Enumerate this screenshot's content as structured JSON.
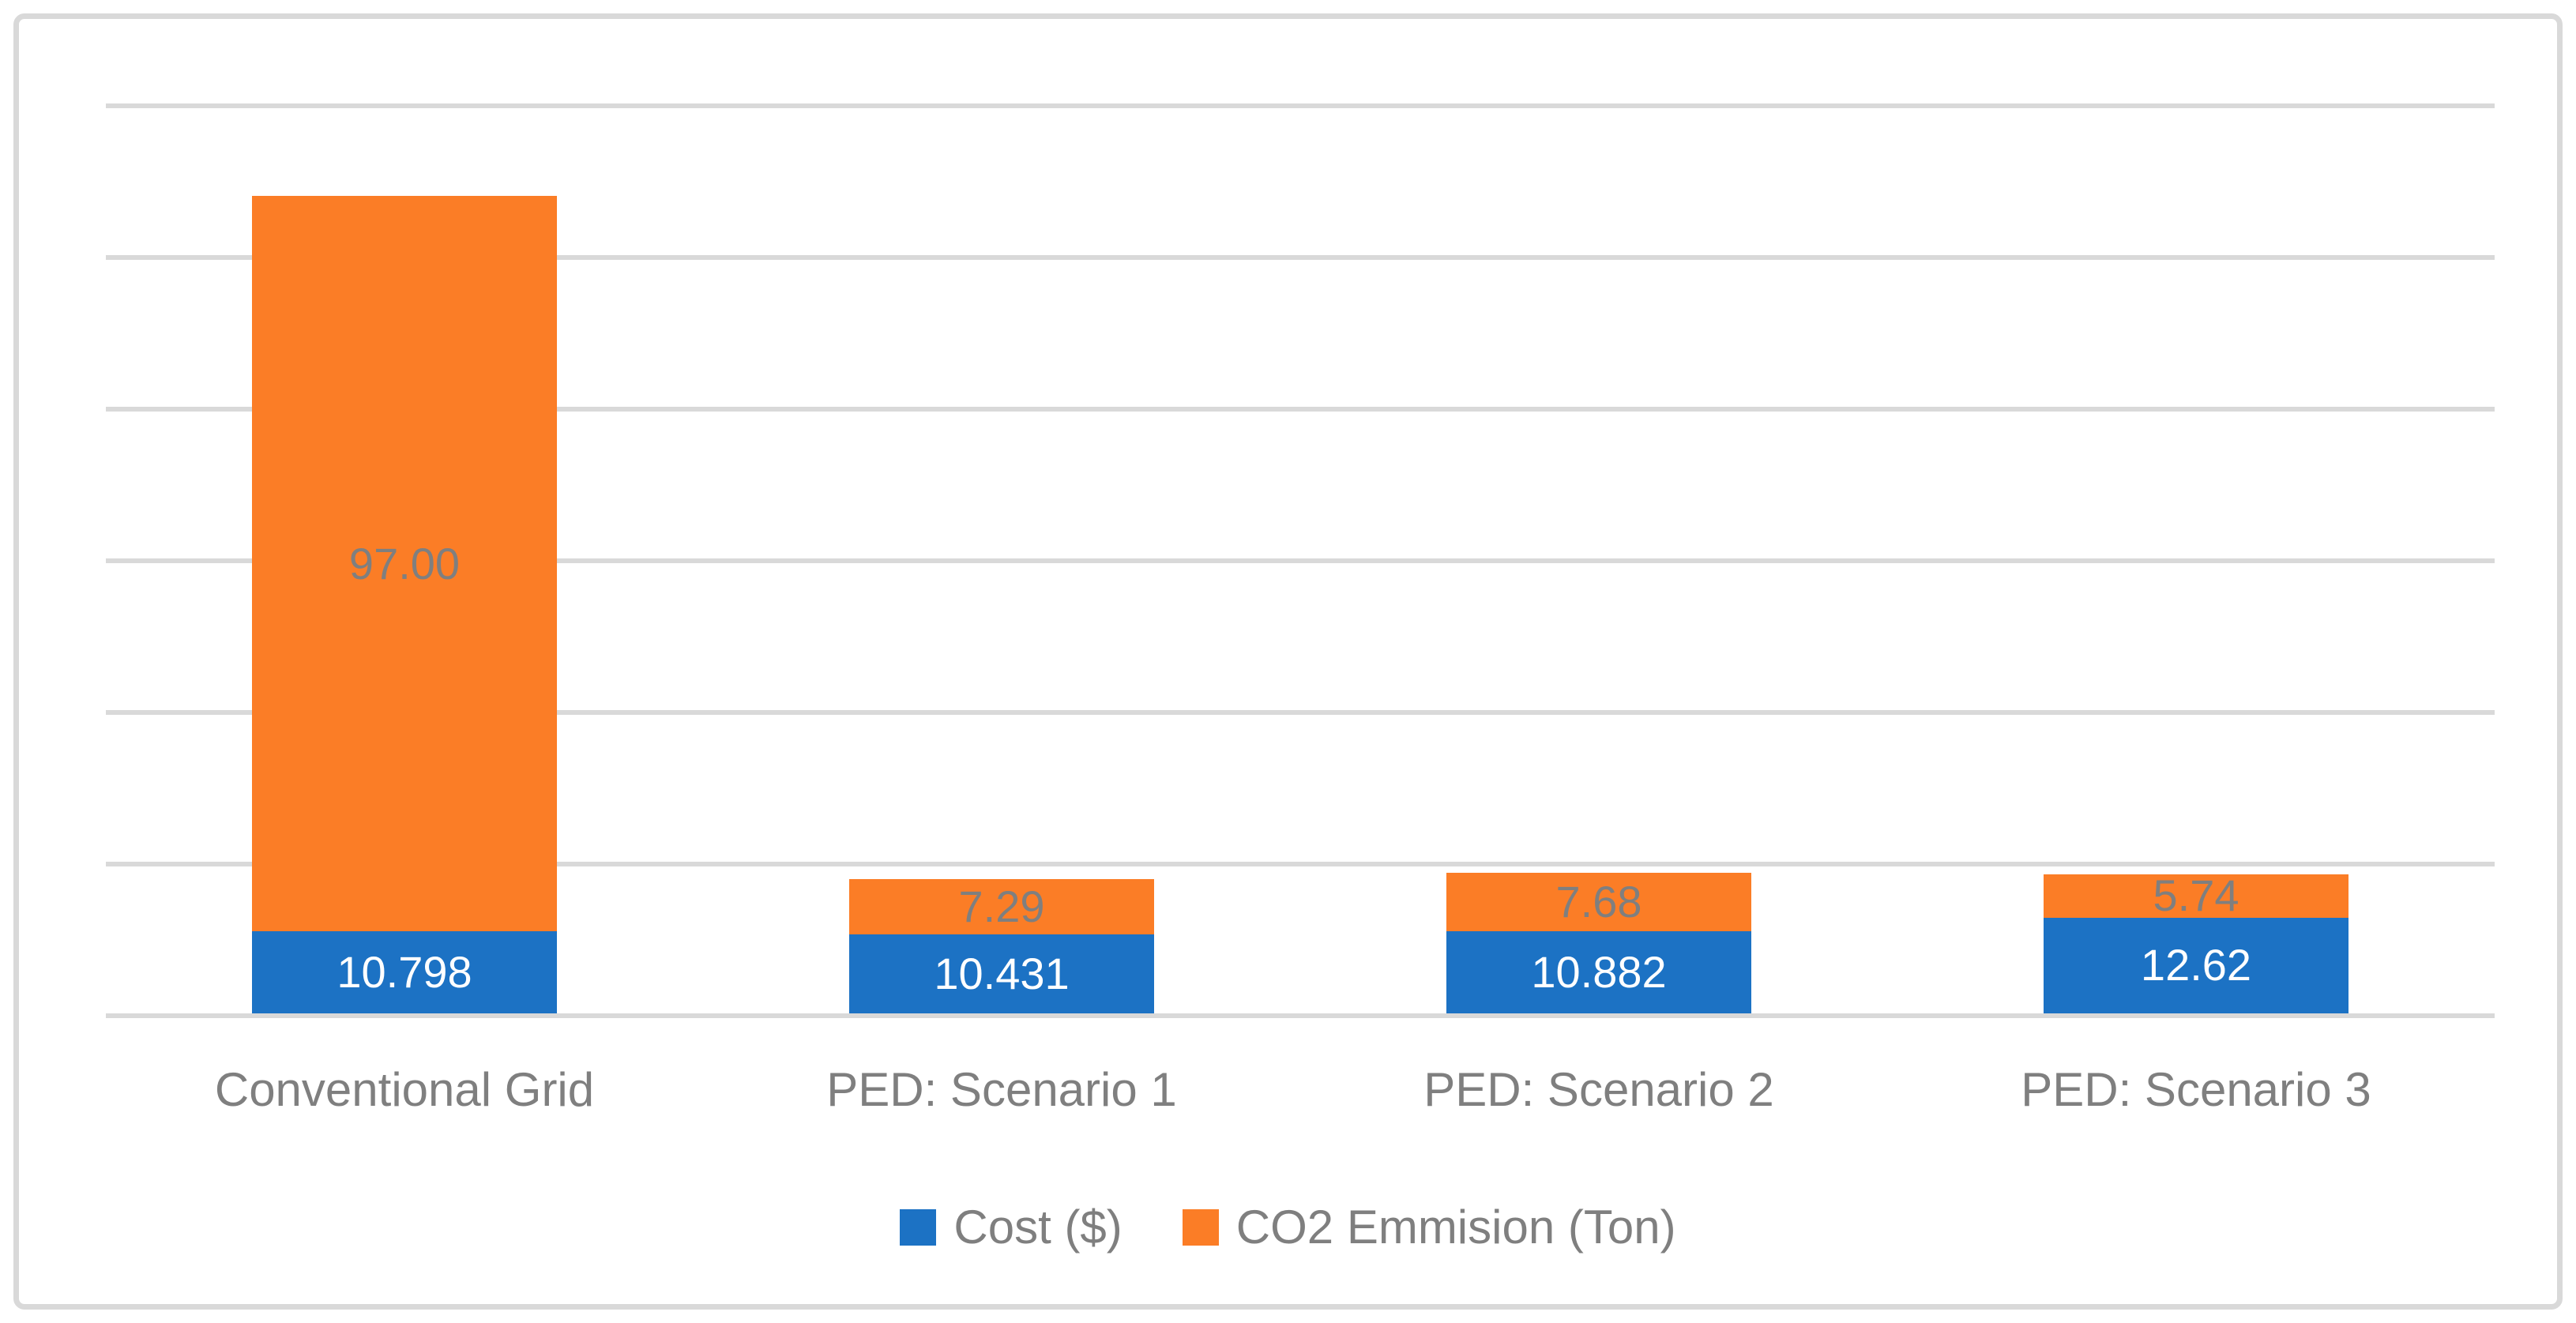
{
  "colors": {
    "bar_blue": "#1C72C4",
    "bar_orange": "#FB7D26",
    "gridline": "#D9D9D9",
    "frame_border": "#D9D9D9",
    "axis_text": "#7F7F7F",
    "label_on_blue": "#FFFFFF",
    "label_on_orange": "#7F7F7F"
  },
  "chart_data": {
    "type": "bar",
    "stacked": true,
    "orientation": "vertical",
    "categories": [
      "Conventional Grid",
      "PED: Scenario 1",
      "PED: Scenario 2",
      "PED: Scenario 3"
    ],
    "series": [
      {
        "name": "Cost ($)",
        "color": "#1C72C4",
        "values": [
          10.798,
          10.431,
          10.882,
          12.62
        ],
        "labels": [
          "10.798",
          "10.431",
          "10.882",
          "12.62"
        ],
        "label_color": "#FFFFFF"
      },
      {
        "name": "CO2 Emmision (Ton)",
        "color": "#FB7D26",
        "values": [
          97.0,
          7.29,
          7.68,
          5.74
        ],
        "labels": [
          "97.00",
          "7.29",
          "7.68",
          "5.74"
        ],
        "label_color": "#7F7F7F"
      }
    ],
    "xlabel": "",
    "ylabel": "",
    "ylim": [
      0,
      120
    ],
    "gridline_step": 20,
    "grid": true,
    "y_tick_labels_visible": false,
    "legend_position": "bottom"
  }
}
